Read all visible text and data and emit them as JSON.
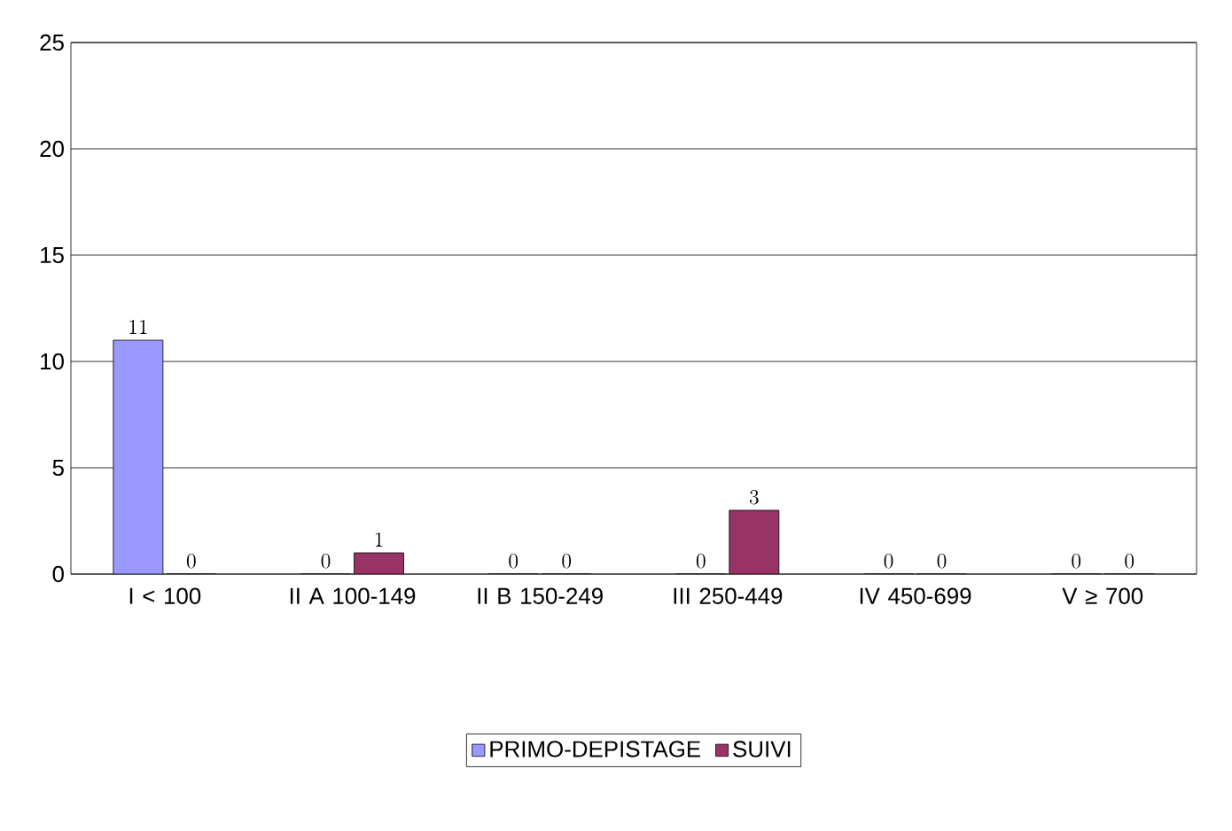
{
  "chart_data": {
    "type": "bar",
    "categories": [
      "I < 100",
      "II A 100-149",
      "II B 150-249",
      "III 250-449",
      "IV 450-699",
      "V ≥ 700"
    ],
    "series": [
      {
        "name": "PRIMO-DEPISTAGE",
        "color": "#9999ff",
        "values": [
          11,
          0,
          0,
          0,
          0,
          0
        ]
      },
      {
        "name": "SUIVI",
        "color": "#993366",
        "values": [
          0,
          1,
          0,
          3,
          0,
          0
        ]
      }
    ],
    "ylim": [
      0,
      25
    ],
    "yticks": [
      0,
      5,
      10,
      15,
      20,
      25
    ],
    "grid": "y",
    "data_labels": true,
    "legend": "bottom"
  }
}
